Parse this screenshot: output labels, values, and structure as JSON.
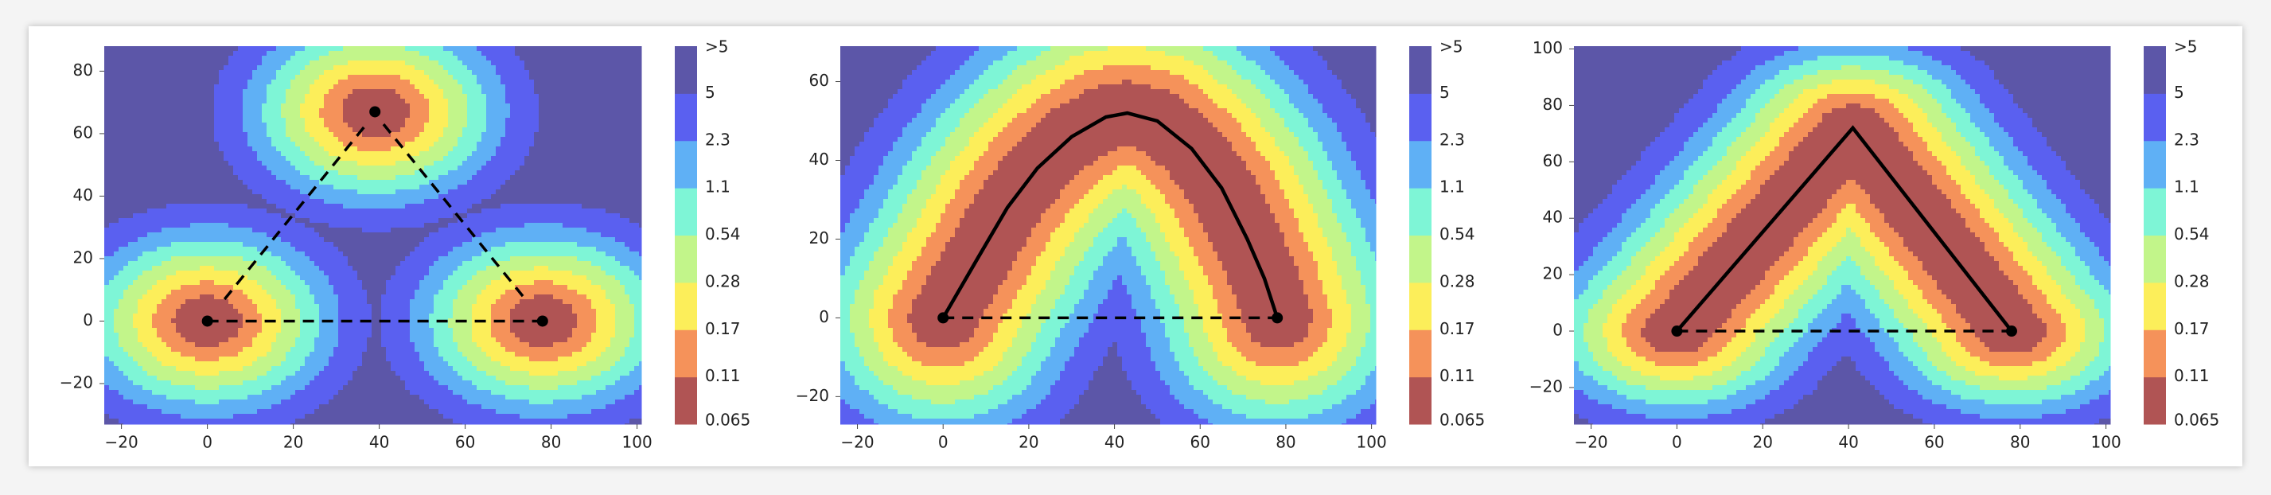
{
  "chart_data": [
    {
      "type": "contour",
      "xlim": [
        -24,
        101
      ],
      "ylim": [
        -33,
        88
      ],
      "xticks": [
        {
          "value": -20,
          "label": "−20"
        },
        0,
        20,
        40,
        60,
        80,
        100
      ],
      "yticks": [
        {
          "value": -20,
          "label": "−20"
        },
        0,
        20,
        40,
        60,
        80
      ],
      "points": {
        "x": [
          0,
          78,
          39
        ],
        "y": [
          0,
          0,
          67
        ],
        "color": "#000000"
      },
      "paths": [
        {
          "style": "dashed",
          "x": [
            0,
            78
          ],
          "y": [
            0,
            0
          ]
        },
        {
          "style": "dashed",
          "x": [
            4,
            37
          ],
          "y": [
            7,
            63
          ]
        },
        {
          "style": "dashed",
          "x": [
            41,
            74
          ],
          "y": [
            63,
            7
          ]
        }
      ],
      "colorbar": {
        "labels": [
          "0.065",
          "0.11",
          "0.17",
          "0.28",
          "0.54",
          "1.1",
          "2.3",
          "5",
          ">5"
        ],
        "colors": [
          "#b05454",
          "#f5925a",
          "#fcee5a",
          "#c2f58a",
          "#7ef5d6",
          "#5fb0f5",
          "#5a60f0",
          "#5c56a8"
        ]
      }
    },
    {
      "type": "contour",
      "xlim": [
        -24,
        101
      ],
      "ylim": [
        -27,
        69
      ],
      "xticks": [
        {
          "value": -20,
          "label": "−20"
        },
        0,
        20,
        40,
        60,
        80,
        100
      ],
      "yticks": [
        {
          "value": -20,
          "label": "−20"
        },
        0,
        20,
        40,
        60
      ],
      "points": {
        "x": [
          0,
          78
        ],
        "y": [
          0,
          0
        ],
        "color": "#000000"
      },
      "paths": [
        {
          "style": "dashed",
          "x": [
            0,
            78
          ],
          "y": [
            0,
            0
          ]
        },
        {
          "style": "solid",
          "x": [
            0,
            8,
            15,
            22,
            30,
            38,
            43,
            50,
            58,
            65,
            71,
            75,
            78
          ],
          "y": [
            0,
            15,
            28,
            38,
            46,
            51,
            52,
            50,
            43,
            33,
            20,
            10,
            0
          ]
        }
      ],
      "colorbar": {
        "labels": [
          "0.065",
          "0.11",
          "0.17",
          "0.28",
          "0.54",
          "1.1",
          "2.3",
          "5",
          ">5"
        ],
        "colors": [
          "#b05454",
          "#f5925a",
          "#fcee5a",
          "#c2f58a",
          "#7ef5d6",
          "#5fb0f5",
          "#5a60f0",
          "#5c56a8"
        ]
      }
    },
    {
      "type": "contour",
      "xlim": [
        -24,
        101
      ],
      "ylim": [
        -33,
        101
      ],
      "xticks": [
        {
          "value": -20,
          "label": "−20"
        },
        0,
        20,
        40,
        60,
        80,
        100
      ],
      "yticks": [
        {
          "value": -20,
          "label": "−20"
        },
        0,
        20,
        40,
        60,
        80,
        100
      ],
      "points": {
        "x": [
          0,
          78
        ],
        "y": [
          0,
          0
        ],
        "color": "#000000"
      },
      "paths": [
        {
          "style": "dashed",
          "x": [
            0,
            78
          ],
          "y": [
            0,
            0
          ]
        },
        {
          "style": "solid",
          "x": [
            0,
            41,
            78
          ],
          "y": [
            0,
            72,
            0
          ]
        }
      ],
      "colorbar": {
        "labels": [
          "0.065",
          "0.11",
          "0.17",
          "0.28",
          "0.54",
          "1.1",
          "2.3",
          "5",
          ">5"
        ],
        "colors": [
          "#b05454",
          "#f5925a",
          "#fcee5a",
          "#c2f58a",
          "#7ef5d6",
          "#5fb0f5",
          "#5a60f0",
          "#5c56a8"
        ]
      }
    }
  ]
}
